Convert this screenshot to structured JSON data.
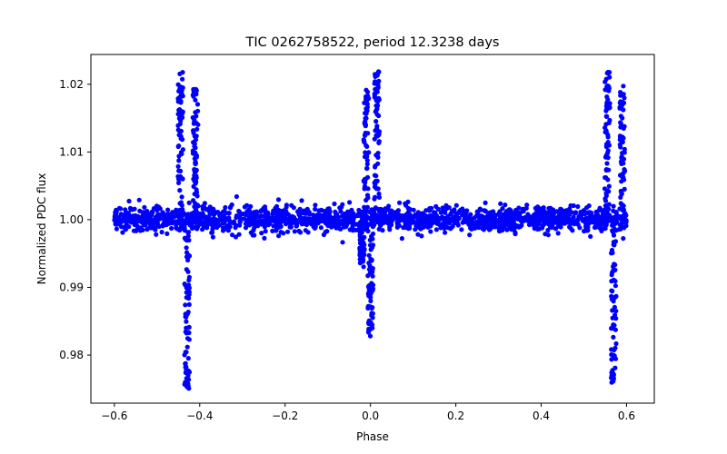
{
  "chart_data": {
    "type": "scatter",
    "title": "TIC 0262758522, period 12.3238 days",
    "xlabel": "Phase",
    "ylabel": "Normalized PDC flux",
    "xlim": [
      -0.655,
      0.665
    ],
    "ylim": [
      0.9729,
      1.0244
    ],
    "xticks": [
      {
        "value": -0.6,
        "label": "−0.6"
      },
      {
        "value": -0.4,
        "label": "−0.4"
      },
      {
        "value": -0.2,
        "label": "−0.2"
      },
      {
        "value": 0.0,
        "label": "0.0"
      },
      {
        "value": 0.2,
        "label": "0.2"
      },
      {
        "value": 0.4,
        "label": "0.4"
      },
      {
        "value": 0.6,
        "label": "0.6"
      }
    ],
    "yticks": [
      {
        "value": 0.98,
        "label": "0.98"
      },
      {
        "value": 0.99,
        "label": "0.99"
      },
      {
        "value": 1.0,
        "label": "1.00"
      },
      {
        "value": 1.01,
        "label": "1.01"
      },
      {
        "value": 1.02,
        "label": "1.02"
      }
    ],
    "marker_color": "#0000ff",
    "series": [
      {
        "name": "flux",
        "baseline": 1.0,
        "phase_range": [
          -0.6,
          0.6
        ],
        "scatter_sigma": 0.0009,
        "events": [
          {
            "kind": "flare",
            "center": -0.445,
            "peak": 1.022
          },
          {
            "kind": "dip",
            "center": -0.43,
            "trough": 0.975
          },
          {
            "kind": "flare",
            "center": -0.41,
            "peak": 1.0195
          },
          {
            "kind": "dip",
            "center": -0.02,
            "trough": 0.9935
          },
          {
            "kind": "flare",
            "center": -0.01,
            "peak": 1.019
          },
          {
            "kind": "dip",
            "center": 0.0,
            "trough": 0.983
          },
          {
            "kind": "flare",
            "center": 0.015,
            "peak": 1.022
          },
          {
            "kind": "flare",
            "center": 0.555,
            "peak": 1.022
          },
          {
            "kind": "dip",
            "center": 0.57,
            "trough": 0.975
          },
          {
            "kind": "flare",
            "center": 0.59,
            "peak": 1.0195
          }
        ]
      }
    ]
  }
}
